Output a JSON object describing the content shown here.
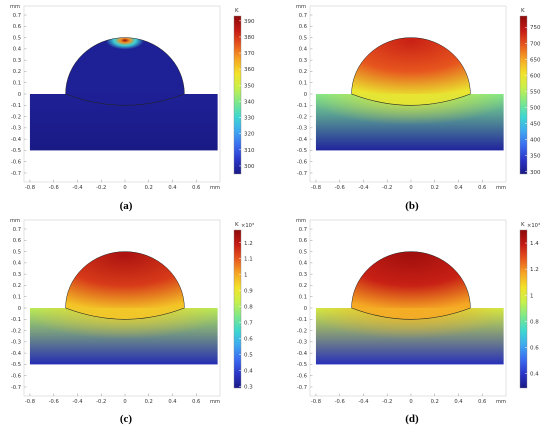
{
  "chart_data": [
    {
      "type": "heatmap",
      "caption": "(a)",
      "colorbar": {
        "unit": "K",
        "exponent_label": "",
        "ticks": [
          "390",
          "380",
          "370",
          "360",
          "350",
          "340",
          "330",
          "320",
          "310",
          "300"
        ],
        "tick_values": [
          390,
          380,
          370,
          360,
          350,
          340,
          330,
          320,
          310,
          300
        ],
        "range": [
          295,
          393
        ]
      },
      "field": {
        "dome_top": 1.0,
        "dome_rest": 0.02,
        "interface": 0.02,
        "base_top": 0.02,
        "base_bottom": 0.0,
        "hot_cap": true
      }
    },
    {
      "type": "heatmap",
      "caption": "(b)",
      "colorbar": {
        "unit": "K",
        "exponent_label": "",
        "ticks": [
          "750",
          "700",
          "650",
          "600",
          "550",
          "500",
          "450",
          "400",
          "350",
          "300"
        ],
        "tick_values": [
          750,
          700,
          650,
          600,
          550,
          500,
          450,
          400,
          350,
          300
        ],
        "range": [
          293,
          785
        ]
      },
      "field": {
        "dome_top": 0.9,
        "dome_rest": 0.82,
        "interface": 0.62,
        "base_top": 0.45,
        "base_bottom": 0.03,
        "hot_cap": false
      }
    },
    {
      "type": "heatmap",
      "caption": "(c)",
      "colorbar": {
        "unit": "K",
        "exponent_label": "×10³",
        "ticks": [
          "1.2",
          "1.1",
          "1",
          "0.9",
          "0.8",
          "0.7",
          "0.6",
          "0.5",
          "0.4",
          "0.3"
        ],
        "tick_values": [
          1.2,
          1.1,
          1.0,
          0.9,
          0.8,
          0.7,
          0.6,
          0.5,
          0.4,
          0.3
        ],
        "range": [
          0.29,
          1.28
        ]
      },
      "field": {
        "dome_top": 0.95,
        "dome_rest": 0.86,
        "interface": 0.68,
        "base_top": 0.52,
        "base_bottom": 0.06,
        "hot_cap": false
      }
    },
    {
      "type": "heatmap",
      "caption": "(d)",
      "colorbar": {
        "unit": "K",
        "exponent_label": "×10³",
        "ticks": [
          "1.4",
          "1.2",
          "1",
          "0.8",
          "0.6",
          "0.4"
        ],
        "tick_values": [
          1.4,
          1.2,
          1.0,
          0.8,
          0.6,
          0.4
        ],
        "range": [
          0.29,
          1.5
        ]
      },
      "field": {
        "dome_top": 0.97,
        "dome_rest": 0.9,
        "interface": 0.72,
        "base_top": 0.56,
        "base_bottom": 0.07,
        "hot_cap": false
      }
    }
  ],
  "axes": {
    "unit_label": "mm",
    "x_ticks": [
      "-0.8",
      "-0.6",
      "-0.4",
      "-0.2",
      "0",
      "0.2",
      "0.4",
      "0.6"
    ],
    "x_values": [
      -0.8,
      -0.6,
      -0.4,
      -0.2,
      0,
      0.2,
      0.4,
      0.6
    ],
    "y_ticks": [
      "0.7",
      "0.6",
      "0.5",
      "0.4",
      "0.3",
      "0.2",
      "0.1",
      "0",
      "-0.1",
      "-0.2",
      "-0.3",
      "-0.4",
      "-0.5",
      "-0.6",
      "-0.7"
    ],
    "y_values": [
      0.7,
      0.6,
      0.5,
      0.4,
      0.3,
      0.2,
      0.1,
      0,
      -0.1,
      -0.2,
      -0.3,
      -0.4,
      -0.5,
      -0.6,
      -0.7
    ],
    "xlim": [
      -0.85,
      0.8
    ],
    "ylim": [
      -0.78,
      0.78
    ]
  },
  "geometry": {
    "base_x": [
      -0.8,
      0.78
    ],
    "base_y": [
      -0.5,
      0.0
    ],
    "dome_radius": 0.5,
    "interface_depth": -0.1
  },
  "colormap": [
    "#1a1a86",
    "#2b36c8",
    "#3a6cf0",
    "#3fa9f0",
    "#3ed8d0",
    "#7ee88a",
    "#c8f04a",
    "#f2e22a",
    "#f6a524",
    "#e8561e",
    "#c41a14",
    "#8e0a0a"
  ]
}
